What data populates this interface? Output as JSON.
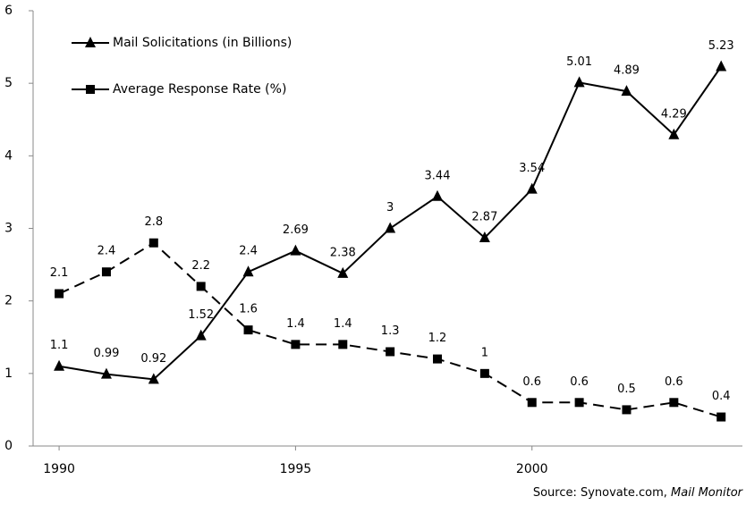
{
  "chart_data": {
    "type": "line",
    "x": [
      1990,
      1991,
      1992,
      1993,
      1994,
      1995,
      1996,
      1997,
      1998,
      1999,
      2000,
      2001,
      2002,
      2003,
      2004
    ],
    "series": [
      {
        "name": "Mail Solicitations (in Billions)",
        "color": "#000000",
        "marker": "triangle",
        "dashed": false,
        "values": [
          1.1,
          0.99,
          0.92,
          1.52,
          2.4,
          2.69,
          2.38,
          3,
          3.44,
          2.87,
          3.54,
          5.01,
          4.89,
          4.29,
          5.23
        ]
      },
      {
        "name": "Average Response Rate (%)",
        "color": "#000000",
        "marker": "square",
        "dashed": true,
        "values": [
          2.1,
          2.4,
          2.8,
          2.2,
          1.6,
          1.4,
          1.4,
          1.3,
          1.2,
          1,
          0.6,
          0.6,
          0.5,
          0.6,
          0.4
        ]
      }
    ],
    "xlim": [
      1989.45,
      2004.45
    ],
    "xticks": [
      1990,
      1995,
      2000
    ],
    "ylim": [
      0,
      6
    ],
    "yticks": [
      0,
      1,
      2,
      3,
      4,
      5,
      6
    ],
    "legend": "upper left",
    "source": "Source: Synovate.com, ",
    "source_italic": "Mail Monitor"
  }
}
